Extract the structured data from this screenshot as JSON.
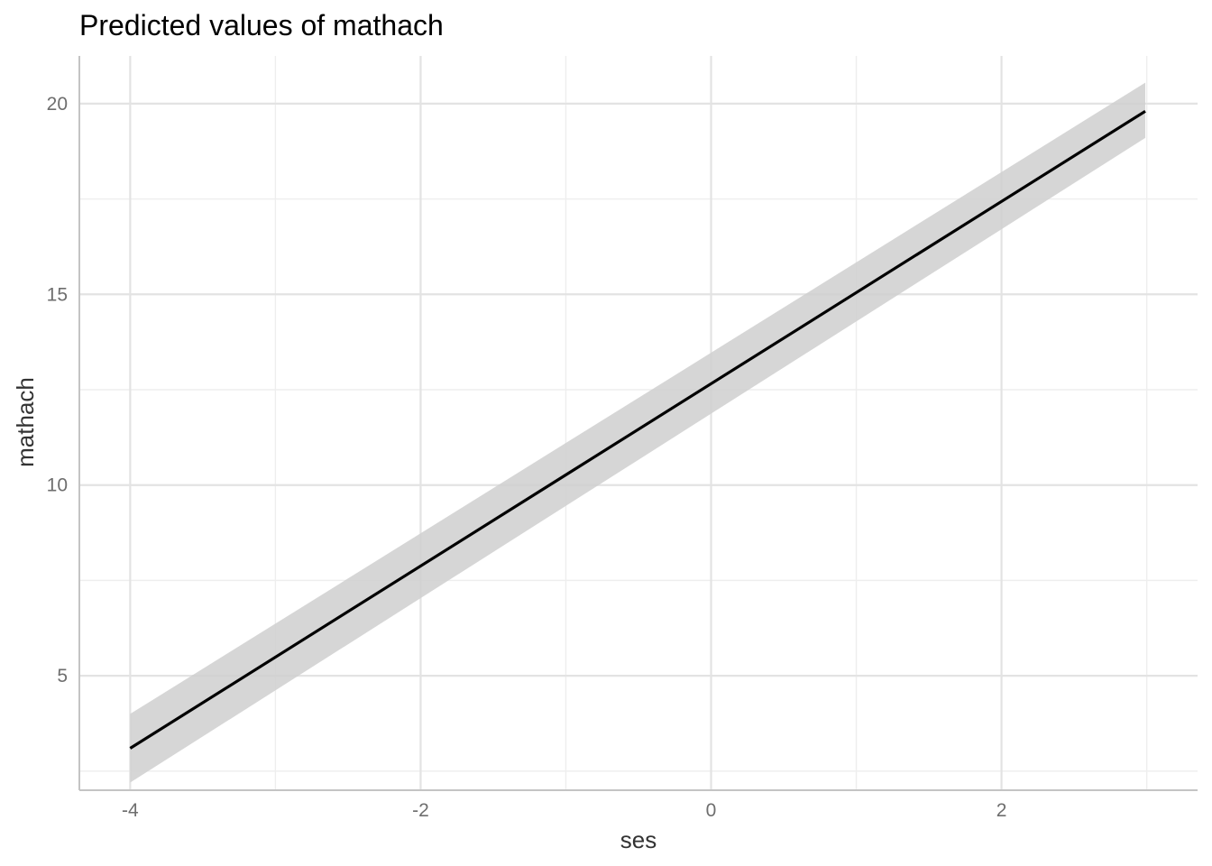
{
  "chart_data": {
    "type": "line",
    "title": "Predicted values of mathach",
    "xlabel": "ses",
    "ylabel": "mathach",
    "xlim": [
      -4.35,
      3.35
    ],
    "ylim": [
      2.0,
      21.25
    ],
    "x_ticks": [
      -4,
      -2,
      0,
      2
    ],
    "x_minor_ticks": [
      -3,
      -1,
      1,
      3
    ],
    "y_ticks": [
      5,
      10,
      15,
      20
    ],
    "y_minor_ticks": [
      2.5,
      7.5,
      12.5,
      17.5
    ],
    "x_tick_labels": [
      "-4",
      "-2",
      "0",
      "2"
    ],
    "y_tick_labels": [
      "5",
      "10",
      "15",
      "20"
    ],
    "grid": true,
    "legend": "none",
    "series": [
      {
        "x": [
          -4.0,
          2.99
        ],
        "y": [
          3.1,
          19.8
        ],
        "ci_lower": [
          2.2,
          19.1
        ],
        "ci_upper": [
          4.0,
          20.55
        ],
        "color": "#000000",
        "ci_color": "#cfcfcf"
      }
    ]
  }
}
